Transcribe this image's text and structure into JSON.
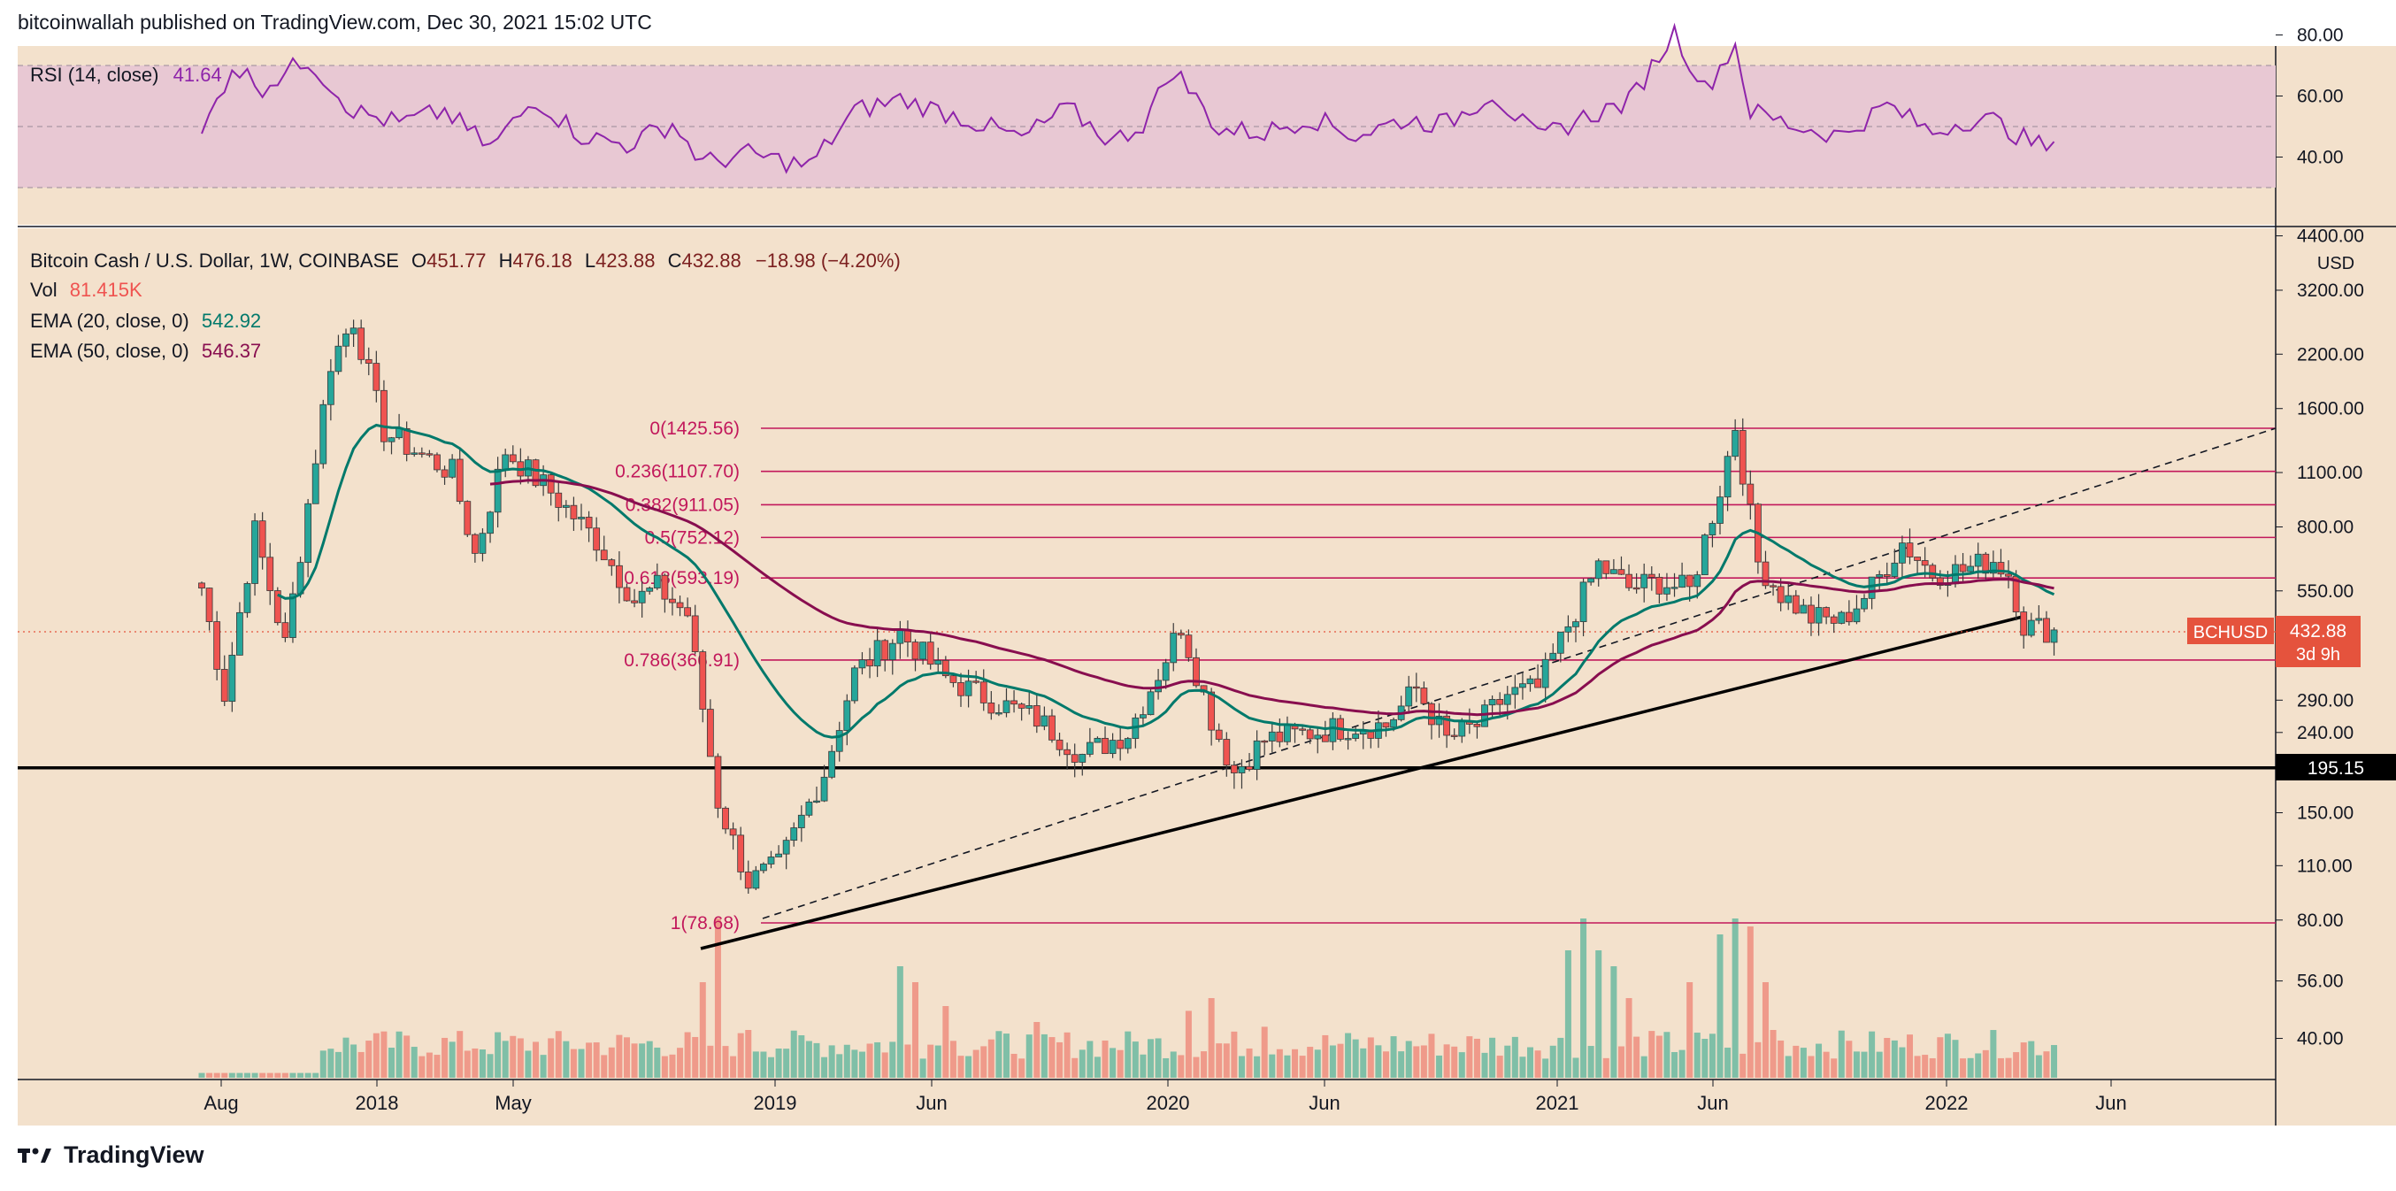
{
  "header": {
    "caption": "bitcoinwallah published on TradingView.com, Dec 30, 2021 15:02 UTC"
  },
  "footer": {
    "brand": "TradingView",
    "logo_icon": "tradingview-logo-icon"
  },
  "colors": {
    "background": "#f3e1cc",
    "rsi_band": "#e8c8d3",
    "rsi_line": "#8e24aa",
    "up": "#26a69a",
    "down": "#ef5350",
    "vol_up": "#7fbfa7",
    "vol_down": "#ef9a8a",
    "ema20": "#00796b",
    "ema50": "#880e4f",
    "fib": "#c2185b",
    "support": "#000000",
    "price_badge": "#e5533d"
  },
  "rsi_panel": {
    "label": "RSI (14, close)",
    "value": "41.64",
    "ticks": [
      "80.00",
      "60.00",
      "40.00"
    ],
    "band": [
      30,
      70
    ]
  },
  "price_panel": {
    "legend": {
      "symbol": "Bitcoin Cash / U.S. Dollar, 1W, COINBASE",
      "open_label": "O",
      "open": "451.77",
      "high_label": "H",
      "high": "476.18",
      "low_label": "L",
      "low": "423.88",
      "close_label": "C",
      "close": "432.88",
      "change": "−18.98 (−4.20%)",
      "vol_label": "Vol",
      "vol": "81.415K",
      "ema20_label": "EMA (20, close, 0)",
      "ema20": "542.92",
      "ema50_label": "EMA (50, close, 0)",
      "ema50": "546.37"
    },
    "currency": "USD",
    "y_ticks": [
      "4400.00",
      "3200.00",
      "2200.00",
      "1600.00",
      "1100.00",
      "800.00",
      "550.00",
      "290.00",
      "240.00",
      "150.00",
      "110.00",
      "80.00",
      "56.00",
      "40.00"
    ],
    "x_ticks": [
      "Aug",
      "2018",
      "May",
      "2019",
      "Jun",
      "2020",
      "Jun",
      "2021",
      "Jun",
      "2022",
      "Jun"
    ],
    "support_label": "195.15",
    "price_badge": {
      "symbol": "BCHUSD",
      "price": "432.88",
      "countdown": "3d 9h"
    },
    "fib_levels": [
      {
        "label": "0(1425.56)",
        "price": 1425.56
      },
      {
        "label": "0.236(1107.70)",
        "price": 1107.7
      },
      {
        "label": "0.382(911.05)",
        "price": 911.05
      },
      {
        "label": "0.5(752.12)",
        "price": 752.12
      },
      {
        "label": "0.618(593.19)",
        "price": 593.19
      },
      {
        "label": "0.786(366.91)",
        "price": 366.91
      },
      {
        "label": "1(78.68)",
        "price": 78.68
      }
    ]
  },
  "chart_data": {
    "type": "candlestick",
    "title": "Bitcoin Cash / U.S. Dollar, 1W, COINBASE",
    "x_ticks": [
      "Aug",
      "2018",
      "May",
      "2019",
      "Jun",
      "2020",
      "Jun",
      "2021",
      "Jun",
      "2022",
      "Jun"
    ],
    "y_scale": "log",
    "series": [
      {
        "name": "BCHUSD",
        "anchors": [
          [
            0,
            560
          ],
          [
            3,
            300
          ],
          [
            7,
            780
          ],
          [
            11,
            400
          ],
          [
            17,
            2100
          ],
          [
            20,
            2700
          ],
          [
            24,
            1400
          ],
          [
            28,
            1250
          ],
          [
            33,
            1100
          ],
          [
            36,
            680
          ],
          [
            40,
            1250
          ],
          [
            46,
            980
          ],
          [
            52,
            740
          ],
          [
            57,
            520
          ],
          [
            60,
            560
          ],
          [
            64,
            480
          ],
          [
            68,
            160
          ],
          [
            72,
            100
          ],
          [
            76,
            110
          ],
          [
            82,
            190
          ],
          [
            86,
            340
          ],
          [
            92,
            430
          ],
          [
            98,
            330
          ],
          [
            104,
            290
          ],
          [
            110,
            260
          ],
          [
            116,
            210
          ],
          [
            122,
            240
          ],
          [
            126,
            340
          ],
          [
            129,
            450
          ],
          [
            133,
            260
          ],
          [
            136,
            190
          ],
          [
            140,
            230
          ],
          [
            146,
            240
          ],
          [
            152,
            250
          ],
          [
            156,
            250
          ],
          [
            160,
            310
          ],
          [
            164,
            230
          ],
          [
            168,
            250
          ],
          [
            172,
            300
          ],
          [
            176,
            310
          ],
          [
            180,
            450
          ],
          [
            184,
            640
          ],
          [
            188,
            560
          ],
          [
            192,
            580
          ],
          [
            196,
            550
          ],
          [
            200,
            1000
          ],
          [
            202,
            1450
          ],
          [
            205,
            650
          ],
          [
            208,
            540
          ],
          [
            212,
            470
          ],
          [
            216,
            460
          ],
          [
            220,
            560
          ],
          [
            224,
            730
          ],
          [
            228,
            610
          ],
          [
            232,
            620
          ],
          [
            236,
            660
          ],
          [
            238,
            610
          ],
          [
            240,
            450
          ],
          [
            244,
            435
          ]
        ]
      },
      {
        "name": "EMA (20, close, 0)",
        "last": 542.92
      },
      {
        "name": "EMA (50, close, 0)",
        "last": 546.37
      },
      {
        "name": "RSI (14, close)",
        "last": 41.64,
        "anchors": [
          [
            0,
            47
          ],
          [
            4,
            70
          ],
          [
            8,
            63
          ],
          [
            14,
            72
          ],
          [
            20,
            55
          ],
          [
            26,
            51
          ],
          [
            32,
            55
          ],
          [
            38,
            43
          ],
          [
            44,
            59
          ],
          [
            50,
            47
          ],
          [
            56,
            44
          ],
          [
            62,
            51
          ],
          [
            66,
            38
          ],
          [
            72,
            41
          ],
          [
            80,
            37
          ],
          [
            86,
            55
          ],
          [
            92,
            59
          ],
          [
            100,
            53
          ],
          [
            108,
            46
          ],
          [
            114,
            56
          ],
          [
            120,
            45
          ],
          [
            124,
            51
          ],
          [
            128,
            69
          ],
          [
            134,
            49
          ],
          [
            140,
            48
          ],
          [
            146,
            53
          ],
          [
            152,
            47
          ],
          [
            158,
            52
          ],
          [
            164,
            51
          ],
          [
            170,
            61
          ],
          [
            176,
            46
          ],
          [
            182,
            53
          ],
          [
            188,
            58
          ],
          [
            194,
            81
          ],
          [
            198,
            62
          ],
          [
            202,
            77
          ],
          [
            204,
            55
          ],
          [
            210,
            50
          ],
          [
            216,
            47
          ],
          [
            222,
            57
          ],
          [
            228,
            48
          ],
          [
            232,
            52
          ],
          [
            236,
            52
          ],
          [
            240,
            46
          ],
          [
            244,
            42
          ]
        ]
      }
    ],
    "volume": "81.415K",
    "fib_levels": [
      1425.56,
      1107.7,
      911.05,
      752.12,
      593.19,
      366.91,
      78.68
    ],
    "support": 195.15
  }
}
